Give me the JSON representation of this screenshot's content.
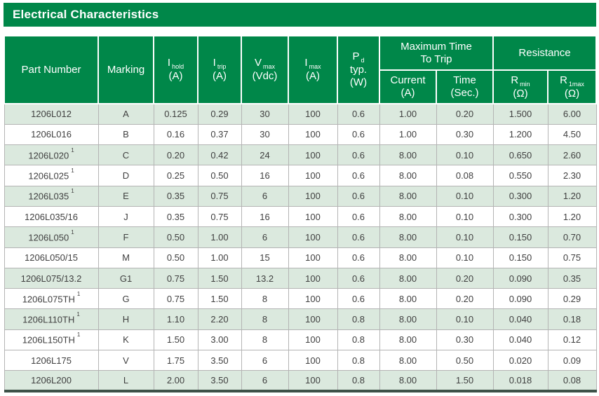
{
  "title": "Electrical Characteristics",
  "colors": {
    "header_green": "#008749",
    "row_shade": "#dbe9de",
    "grid_line": "#b4b4b4",
    "bottom_bar": "#3d5148",
    "body_text": "#3f3f3f",
    "header_text": "#ffffff"
  },
  "table": {
    "header": {
      "part": "Part Number",
      "marking": "Marking",
      "ihold": {
        "sym": "I",
        "sub": "hold",
        "unit": "(A)"
      },
      "itrip": {
        "sym": "I",
        "sub": "trip",
        "unit": "(A)"
      },
      "vmax": {
        "sym": "V",
        "sub": "max",
        "unit": "(Vdc)"
      },
      "imax": {
        "sym": "I",
        "sub": "max",
        "unit": "(A)"
      },
      "pd": {
        "sym": "P",
        "sub": "d",
        "line2": "typ.",
        "unit": "(W)"
      },
      "trip_group_line1": "Maximum Time",
      "trip_group_line2": "To Trip",
      "resistance_group": "Resistance",
      "current": {
        "label": "Current",
        "unit": "(A)"
      },
      "time": {
        "label": "Time",
        "unit": "(Sec.)"
      },
      "rmin": {
        "sym": "R",
        "sub": "min",
        "unit": "(Ω)"
      },
      "r1max": {
        "sym": "R",
        "sub": "1max",
        "unit": "(Ω)"
      }
    },
    "rows": [
      {
        "part": "1206L012",
        "sup": "",
        "marking": "A",
        "ihold": "0.125",
        "itrip": "0.29",
        "vmax": "30",
        "imax": "100",
        "pd": "0.6",
        "trip_current": "1.00",
        "trip_time": "0.20",
        "rmin": "1.500",
        "r1max": "6.00",
        "shaded": true
      },
      {
        "part": "1206L016",
        "sup": "",
        "marking": "B",
        "ihold": "0.16",
        "itrip": "0.37",
        "vmax": "30",
        "imax": "100",
        "pd": "0.6",
        "trip_current": "1.00",
        "trip_time": "0.30",
        "rmin": "1.200",
        "r1max": "4.50",
        "shaded": false
      },
      {
        "part": "1206L020",
        "sup": "1",
        "marking": "C",
        "ihold": "0.20",
        "itrip": "0.42",
        "vmax": "24",
        "imax": "100",
        "pd": "0.6",
        "trip_current": "8.00",
        "trip_time": "0.10",
        "rmin": "0.650",
        "r1max": "2.60",
        "shaded": true
      },
      {
        "part": "1206L025",
        "sup": "1",
        "marking": "D",
        "ihold": "0.25",
        "itrip": "0.50",
        "vmax": "16",
        "imax": "100",
        "pd": "0.6",
        "trip_current": "8.00",
        "trip_time": "0.08",
        "rmin": "0.550",
        "r1max": "2.30",
        "shaded": false
      },
      {
        "part": "1206L035",
        "sup": "1",
        "marking": "E",
        "ihold": "0.35",
        "itrip": "0.75",
        "vmax": "6",
        "imax": "100",
        "pd": "0.6",
        "trip_current": "8.00",
        "trip_time": "0.10",
        "rmin": "0.300",
        "r1max": "1.20",
        "shaded": true
      },
      {
        "part": "1206L035/16",
        "sup": "",
        "marking": "J",
        "ihold": "0.35",
        "itrip": "0.75",
        "vmax": "16",
        "imax": "100",
        "pd": "0.6",
        "trip_current": "8.00",
        "trip_time": "0.10",
        "rmin": "0.300",
        "r1max": "1.20",
        "shaded": false
      },
      {
        "part": "1206L050",
        "sup": "1",
        "marking": "F",
        "ihold": "0.50",
        "itrip": "1.00",
        "vmax": "6",
        "imax": "100",
        "pd": "0.6",
        "trip_current": "8.00",
        "trip_time": "0.10",
        "rmin": "0.150",
        "r1max": "0.70",
        "shaded": true
      },
      {
        "part": "1206L050/15",
        "sup": "",
        "marking": "M",
        "ihold": "0.50",
        "itrip": "1.00",
        "vmax": "15",
        "imax": "100",
        "pd": "0.6",
        "trip_current": "8.00",
        "trip_time": "0.10",
        "rmin": "0.150",
        "r1max": "0.75",
        "shaded": false
      },
      {
        "part": "1206L075/13.2",
        "sup": "",
        "marking": "G1",
        "ihold": "0.75",
        "itrip": "1.50",
        "vmax": "13.2",
        "imax": "100",
        "pd": "0.6",
        "trip_current": "8.00",
        "trip_time": "0.20",
        "rmin": "0.090",
        "r1max": "0.35",
        "shaded": true
      },
      {
        "part": "1206L075TH",
        "sup": "1",
        "marking": "G",
        "ihold": "0.75",
        "itrip": "1.50",
        "vmax": "8",
        "imax": "100",
        "pd": "0.6",
        "trip_current": "8.00",
        "trip_time": "0.20",
        "rmin": "0.090",
        "r1max": "0.29",
        "shaded": false
      },
      {
        "part": "1206L110TH",
        "sup": "1",
        "marking": "H",
        "ihold": "1.10",
        "itrip": "2.20",
        "vmax": "8",
        "imax": "100",
        "pd": "0.8",
        "trip_current": "8.00",
        "trip_time": "0.10",
        "rmin": "0.040",
        "r1max": "0.18",
        "shaded": true
      },
      {
        "part": "1206L150TH",
        "sup": "1",
        "marking": "K",
        "ihold": "1.50",
        "itrip": "3.00",
        "vmax": "8",
        "imax": "100",
        "pd": "0.8",
        "trip_current": "8.00",
        "trip_time": "0.30",
        "rmin": "0.040",
        "r1max": "0.12",
        "shaded": false
      },
      {
        "part": "1206L175",
        "sup": "",
        "marking": "V",
        "ihold": "1.75",
        "itrip": "3.50",
        "vmax": "6",
        "imax": "100",
        "pd": "0.8",
        "trip_current": "8.00",
        "trip_time": "0.50",
        "rmin": "0.020",
        "r1max": "0.09",
        "shaded": false
      },
      {
        "part": "1206L200",
        "sup": "",
        "marking": "L",
        "ihold": "2.00",
        "itrip": "3.50",
        "vmax": "6",
        "imax": "100",
        "pd": "0.8",
        "trip_current": "8.00",
        "trip_time": "1.50",
        "rmin": "0.018",
        "r1max": "0.08",
        "shaded": true
      }
    ]
  }
}
